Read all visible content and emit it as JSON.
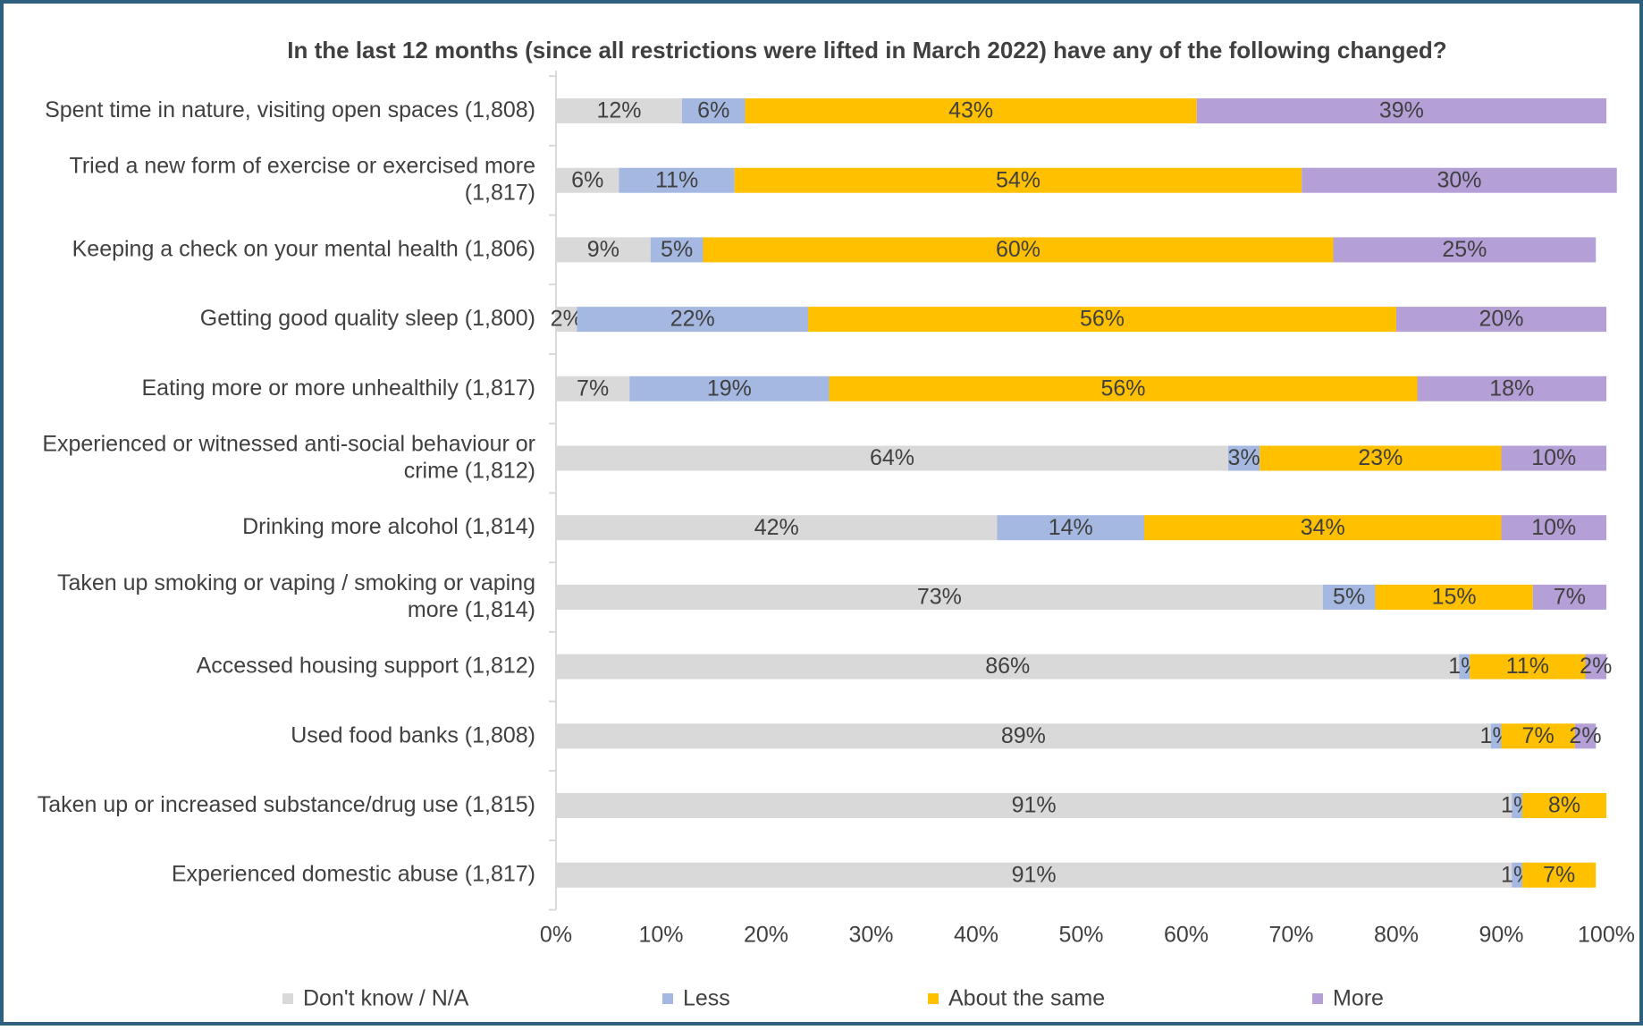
{
  "chart_data": {
    "type": "stacked_bar_horizontal",
    "title": "In the last 12 months (since all restrictions were lifted in March 2022) have any of the following changed?",
    "categories": [
      "Spent time in nature, visiting open spaces (1,808)",
      "Tried a new form of exercise or exercised more (1,817)",
      "Keeping a check on your mental health (1,806)",
      "Getting good quality sleep (1,800)",
      "Eating more or more unhealthily (1,817)",
      "Experienced or witnessed anti-social behaviour or crime (1,812)",
      "Drinking more alcohol (1,814)",
      "Taken up smoking or vaping / smoking or vaping more (1,814)",
      "Accessed housing support (1,812)",
      "Used food banks (1,808)",
      "Taken up or increased substance/drug use (1,815)",
      "Experienced domestic abuse (1,817)"
    ],
    "series": [
      {
        "name": "Don't know / N/A",
        "color": "#d9d9d9",
        "values": [
          12,
          6,
          9,
          2,
          7,
          64,
          42,
          73,
          86,
          89,
          91,
          91
        ],
        "value_labels": [
          "12%",
          "6%",
          "9%",
          "2%",
          "7%",
          "64%",
          "42%",
          "73%",
          "86%",
          "89%",
          "91%",
          "91%"
        ]
      },
      {
        "name": "Less",
        "color": "#a4b8e1",
        "values": [
          6,
          11,
          5,
          22,
          19,
          3,
          14,
          5,
          1,
          1,
          1,
          1
        ],
        "value_labels": [
          "6%",
          "11%",
          "5%",
          "22%",
          "19%",
          "3%",
          "14%",
          "5%",
          "1%",
          "1%",
          "1%",
          "1%"
        ]
      },
      {
        "name": "About the same",
        "color": "#ffc000",
        "values": [
          43,
          54,
          60,
          56,
          56,
          23,
          34,
          15,
          11,
          7,
          8,
          7
        ],
        "value_labels": [
          "43%",
          "54%",
          "60%",
          "56%",
          "56%",
          "23%",
          "34%",
          "15%",
          "11%",
          "7%",
          "8%",
          "7%"
        ]
      },
      {
        "name": "More",
        "color": "#b49fd6",
        "values": [
          39,
          30,
          25,
          20,
          18,
          10,
          10,
          7,
          2,
          2,
          null,
          null
        ],
        "value_labels": [
          "39%",
          "30%",
          "25%",
          "20%",
          "18%",
          "10%",
          "10%",
          "7%",
          "2%",
          "2%",
          null,
          null
        ]
      }
    ],
    "xlim": [
      0,
      100
    ],
    "xticks": [
      {
        "value": 0,
        "label": "0%"
      },
      {
        "value": 10,
        "label": "10%"
      },
      {
        "value": 20,
        "label": "20%"
      },
      {
        "value": 30,
        "label": "30%"
      },
      {
        "value": 40,
        "label": "40%"
      },
      {
        "value": 50,
        "label": "50%"
      },
      {
        "value": 60,
        "label": "60%"
      },
      {
        "value": 70,
        "label": "70%"
      },
      {
        "value": 80,
        "label": "80%"
      },
      {
        "value": 90,
        "label": "90%"
      },
      {
        "value": 100,
        "label": "100%"
      }
    ],
    "legend": "bottom"
  }
}
